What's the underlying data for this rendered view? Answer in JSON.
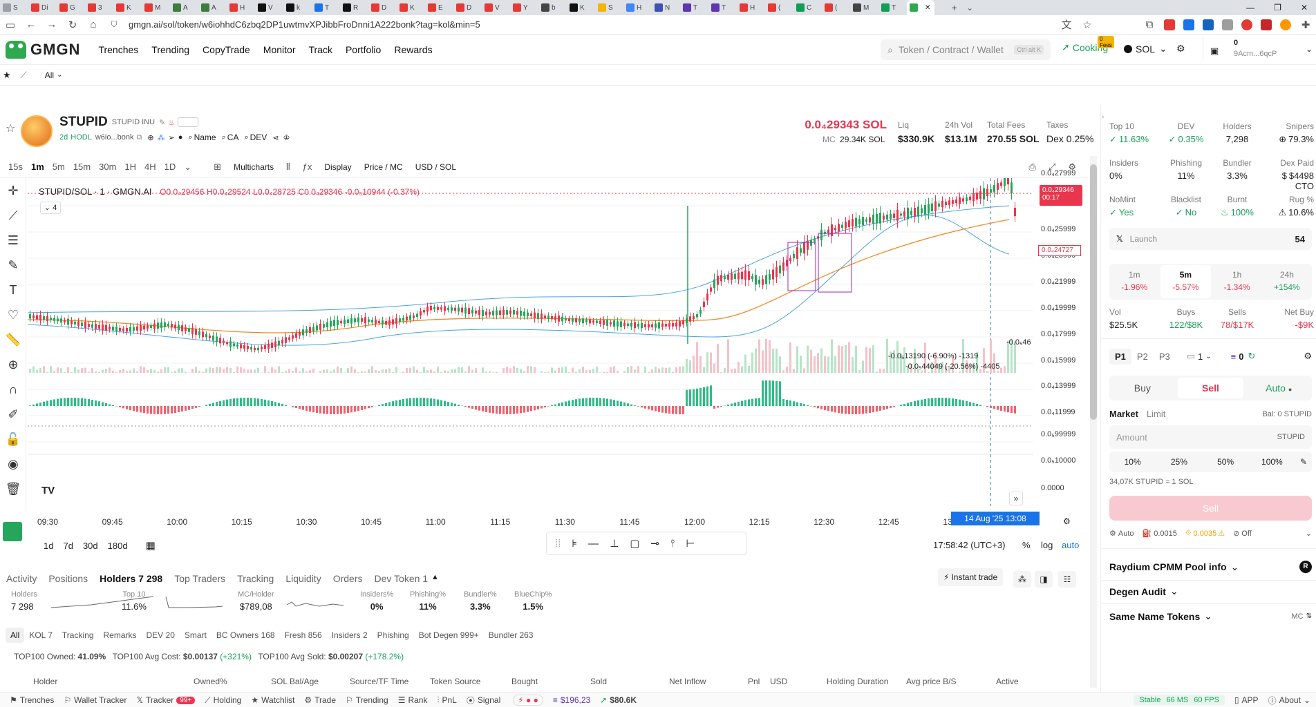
{
  "browser": {
    "tabs": [
      "S",
      "Di",
      "G",
      "3",
      "K",
      "M",
      "A",
      "A",
      "H",
      "V",
      "k",
      "T",
      "R",
      "D",
      "K",
      "E",
      "D",
      "V",
      "Y",
      "b",
      "K",
      "S",
      "H",
      "N",
      "T",
      "T",
      "H",
      "(",
      "C",
      "(",
      "M",
      "T",
      ""
    ],
    "tab_colors": [
      "#9aa0a6",
      "#e53935",
      "#e53935",
      "#e53935",
      "#e53935",
      "#e53935",
      "#3c7d3c",
      "#3c7d3c",
      "#e53935",
      "#111111",
      "#111111",
      "#1a73e8",
      "#111111",
      "#e53935",
      "#e53935",
      "#e53935",
      "#e53935",
      "#e53935",
      "#e53935",
      "#444444",
      "#111111",
      "#f4b400",
      "#4285f4",
      "#3f51b5",
      "#5e35b1",
      "#5e35b1",
      "#e53935",
      "#e53935",
      "#0f9d58",
      "#e53935",
      "#444444",
      "#0f9d58",
      "#2fa84f"
    ],
    "url": "gmgn.ai/sol/token/w6iohhdC6zbq2DP1uwtmvXPJibbFroDnni1A222bonk?tag=kol&min=5"
  },
  "header": {
    "brand": "GMGN",
    "nav": [
      "Trenches",
      "Trending",
      "CopyTrade",
      "Monitor",
      "Track",
      "Portfolio",
      "Rewards"
    ],
    "search_placeholder": "Token / Contract / Wallet",
    "search_kbd": "Ctrl alt K",
    "cooking_badge": "0 Fees",
    "cooking_label": "Cooking",
    "chain": "SOL",
    "wallet_balance": "0",
    "wallet_addr": "9Acm...6qcP"
  },
  "subbar": {
    "filter": "All"
  },
  "token": {
    "symbol": "STUPID",
    "name": "STUPID INU",
    "age": "2d",
    "hodl": "HODL",
    "address": "w6io...bonk",
    "links": [
      "Name",
      "CA",
      "DEV"
    ],
    "price": "0.0₄29343 SOL",
    "mc_label": "MC",
    "mc": "29.34K SOL",
    "stats": [
      {
        "label": "Liq",
        "value": "$330.9K"
      },
      {
        "label": "24h Vol",
        "value": "$13.1M"
      },
      {
        "label": "Total Fees",
        "value": "270.55 SOL"
      },
      {
        "label": "Taxes",
        "value": "Dex 0.25%"
      }
    ]
  },
  "chart_toolbar": {
    "intervals": [
      "15s",
      "1m",
      "5m",
      "15m",
      "30m",
      "1H",
      "4H",
      "1D"
    ],
    "selected": "1m",
    "multicharts": "Multicharts",
    "display": "Display",
    "price_mc": "Price / MC",
    "usd_sol": "USD / SOL"
  },
  "chart_legend": {
    "pair": "STUPID/SOL · 1 · GMGN.AI",
    "o": "O0.0₄29456",
    "h": "H0.0₄29524",
    "l": "L0.0₄28725",
    "c": "C0.0₄29346",
    "chg": "-0.0₅10944 (-0.37%)",
    "indicators": "4"
  },
  "chart_data": {
    "type": "candlestick",
    "y_ticks": [
      "0.0₄27999",
      "0.0₄25999",
      "0.0₄23999",
      "0.0₄21999",
      "0.0₄19999",
      "0.0₄17999",
      "0.0₄15999",
      "0.0₄13999",
      "0.0₄11999",
      "0.0₅99999",
      "0.0₅10000",
      "0.0000"
    ],
    "x_ticks": [
      "09:30",
      "09:45",
      "10:00",
      "10:15",
      "10:30",
      "10:45",
      "11:00",
      "11:15",
      "11:30",
      "11:45",
      "12:00",
      "12:15",
      "12:30",
      "12:45",
      "13"
    ],
    "last_price_tag": "0.0₄29346",
    "last_price_timer": "00:17",
    "cross_price_tag": "0.0₄24727",
    "crosshair_time": "14 Aug '25   13:08",
    "annotations": [
      "-0.0₅13190 (-6.90%) -1319",
      "-0.0₅44049 (-20.56%) -4405",
      "-0.0₅46"
    ]
  },
  "period_bar": {
    "ranges": [
      "1d",
      "7d",
      "30d",
      "180d"
    ],
    "clock": "17:58:42 (UTC+3)",
    "pct": "%",
    "log": "log",
    "auto": "auto"
  },
  "bottom_tabs": {
    "tabs": [
      "Activity",
      "Positions",
      "Holders 7 298",
      "Top Traders",
      "Tracking",
      "Liquidity",
      "Orders",
      "Dev Token 1"
    ],
    "active": "Holders 7 298",
    "instant_trade": "Instant trade"
  },
  "holder_stats": [
    {
      "label": "Holders",
      "value": "7 298"
    },
    {
      "label": "Top 10",
      "value": "11.6%"
    },
    {
      "label": "MC/Holder",
      "value": "$789,08"
    },
    {
      "label": "Insiders%",
      "value": "0%"
    },
    {
      "label": "Phishing%",
      "value": "11%"
    },
    {
      "label": "Bundler%",
      "value": "3.3%"
    },
    {
      "label": "BlueChip%",
      "value": "1.5%"
    }
  ],
  "filters": [
    "All",
    "KOL 7",
    "Tracking",
    "Remarks",
    "DEV 20",
    "Smart",
    "BC Owners 168",
    "Fresh 856",
    "Insiders 2",
    "Phishing",
    "Bot Degen 999+",
    "Bundler 263"
  ],
  "summary": {
    "owned_label": "TOP100 Owned:",
    "owned": "41.09%",
    "cost_label": "TOP100 Avg Cost:",
    "cost": "$0.00137",
    "cost_chg": "(+321%)",
    "sold_label": "TOP100 Avg Sold:",
    "sold": "$0.00207",
    "sold_chg": "(+178.2%)"
  },
  "columns": [
    "Holder",
    "Owned%",
    "SOL Bal/Age",
    "Source/TF Time",
    "Token Source",
    "Bought",
    "Sold",
    "Net Inflow",
    "Pnl",
    "USD",
    "Holding Duration",
    "Avg price B/S",
    "Active"
  ],
  "footer": {
    "items": [
      "Trenches",
      "Wallet Tracker",
      "Tracker",
      "Holding",
      "Watchlist",
      "Trade",
      "Trending",
      "Rank",
      "PnL",
      "Signal"
    ],
    "tracker_badge": "99+",
    "bal1": "$196,23",
    "bal2": "$80.6K",
    "status": "Stable",
    "ms": "66 MS",
    "fps": "60 FPS",
    "app": "APP",
    "about": "About"
  },
  "right": {
    "row1": [
      {
        "label": "Top 10",
        "value": "11.63%",
        "color": "green"
      },
      {
        "label": "DEV",
        "value": "0.35%",
        "color": "green"
      },
      {
        "label": "Holders",
        "value": "7,298",
        "color": "dark"
      },
      {
        "label": "Snipers",
        "value": "79.3%",
        "color": "dark"
      }
    ],
    "row2": [
      {
        "label": "Insiders",
        "value": "0%",
        "color": "dark"
      },
      {
        "label": "Phishing",
        "value": "11%",
        "color": "dark"
      },
      {
        "label": "Bundler",
        "value": "3.3%",
        "color": "dark"
      },
      {
        "label": "Dex Paid",
        "value": "$4498 CTO",
        "color": "dark"
      }
    ],
    "row3": [
      {
        "label": "NoMint",
        "value": "Yes",
        "color": "green"
      },
      {
        "label": "Blacklist",
        "value": "No",
        "color": "green"
      },
      {
        "label": "Burnt",
        "value": "100%",
        "color": "green"
      },
      {
        "label": "Rug %",
        "value": "10.6%",
        "color": "dark"
      }
    ],
    "launch_label": "Launch",
    "launch_value": "54",
    "timeframes": [
      {
        "tf": "1m",
        "chg": "-1.96%",
        "color": "red"
      },
      {
        "tf": "5m",
        "chg": "-5.57%",
        "color": "red"
      },
      {
        "tf": "1h",
        "chg": "-1.34%",
        "color": "red"
      },
      {
        "tf": "24h",
        "chg": "+154%",
        "color": "green"
      }
    ],
    "vol_row": [
      {
        "label": "Vol",
        "value": "$25.5K",
        "color": "dark"
      },
      {
        "label": "Buys",
        "value": "122/$8K",
        "color": "green"
      },
      {
        "label": "Sells",
        "value": "78/$17K",
        "color": "red"
      },
      {
        "label": "Net Buy",
        "value": "-$9K",
        "color": "red"
      }
    ],
    "presets": [
      "P1",
      "P2",
      "P3"
    ],
    "preset_num": "1",
    "orders_count": "0",
    "trade_tabs": [
      "Buy",
      "Sell",
      "Auto"
    ],
    "order_types": [
      "Market",
      "Limit"
    ],
    "bal": "Bal: 0 STUPID",
    "amount_placeholder": "Amount",
    "amount_unit": "STUPID",
    "quick": [
      "10%",
      "25%",
      "50%",
      "100%"
    ],
    "rate": "34,07K STUPID ≈ 1 SOL",
    "sell_btn": "Sell",
    "settings": [
      "Auto",
      "0.0015",
      "0.0035",
      "Off"
    ],
    "sections": [
      "Raydium CPMM Pool info",
      "Degen Audit",
      "Same Name Tokens"
    ],
    "same_name_right": "MC"
  }
}
